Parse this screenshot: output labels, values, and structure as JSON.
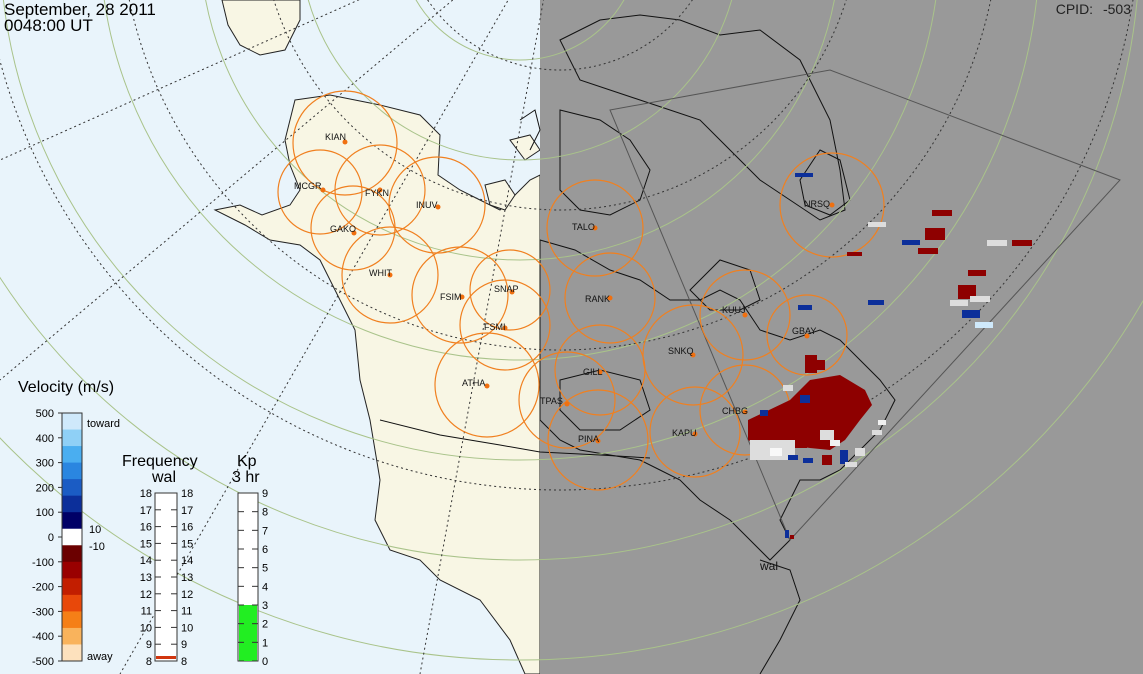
{
  "header": {
    "date": "September, 28 2011",
    "time": "0048:00 UT",
    "cpid_label": "CPID:",
    "cpid_value": "-503"
  },
  "radar_label": "wal",
  "stations": [
    {
      "code": "KIAN"
    },
    {
      "code": "MCGR"
    },
    {
      "code": "FYKN"
    },
    {
      "code": "INUV"
    },
    {
      "code": "GAKO"
    },
    {
      "code": "WHIT"
    },
    {
      "code": "FSIM"
    },
    {
      "code": "SNAP"
    },
    {
      "code": "FSMI"
    },
    {
      "code": "ATHA"
    },
    {
      "code": "TALO"
    },
    {
      "code": "RANK"
    },
    {
      "code": "GILL"
    },
    {
      "code": "TPAS"
    },
    {
      "code": "PINA"
    },
    {
      "code": "SNKQ"
    },
    {
      "code": "KAPU"
    },
    {
      "code": "CHBG"
    },
    {
      "code": "KUUJ"
    },
    {
      "code": "GBAY"
    },
    {
      "code": "NRSQ"
    }
  ],
  "velocity_legend": {
    "title": "Velocity (m/s)",
    "toward": "toward",
    "away": "away",
    "ticks": [
      "500",
      "400",
      "300",
      "200",
      "100",
      "0",
      "-100",
      "-200",
      "-300",
      "-400",
      "-500"
    ],
    "threshold_pos": "10",
    "threshold_neg": "-10",
    "colors_top_to_bottom": [
      "#cfe9fb",
      "#8fd0f6",
      "#4aaef0",
      "#2a86e0",
      "#1b5cc4",
      "#0c2f9a",
      "#000066",
      "#ffffff",
      "#6b0000",
      "#990000",
      "#c21e00",
      "#e8480a",
      "#f57f17",
      "#f9b35c",
      "#fde1bd"
    ]
  },
  "frequency_legend": {
    "title": "Frequency",
    "subtitle": "wal",
    "ticks": [
      "18",
      "17",
      "16",
      "15",
      "14",
      "13",
      "12",
      "11",
      "10",
      "9",
      "8"
    ],
    "marker_color": "#d1350e"
  },
  "kp_legend": {
    "title": "Kp",
    "subtitle": "3 hr",
    "ticks": [
      "9",
      "8",
      "7",
      "6",
      "5",
      "4",
      "3",
      "2",
      "1",
      "0"
    ],
    "value": 3,
    "fill_color": "#22ee22"
  },
  "colors": {
    "ocean": "#e9f4fb",
    "land": "#f8f6e4",
    "night": "#999999",
    "circle": "#f08020",
    "grid": "#a9c38a"
  }
}
